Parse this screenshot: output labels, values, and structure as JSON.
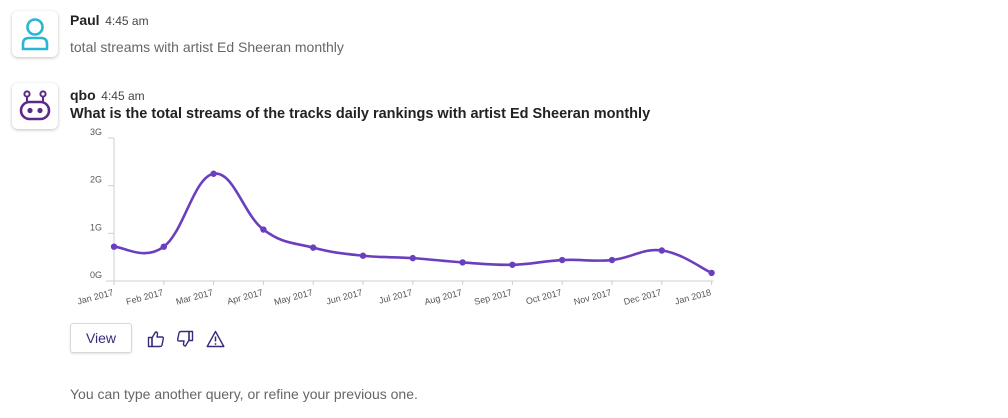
{
  "user_message": {
    "author": "Paul",
    "time": "4:45 am",
    "text": "total streams with artist Ed Sheeran monthly",
    "avatar_icon": "user-icon",
    "avatar_color": "#29b6d5"
  },
  "bot_message": {
    "author": "qbo",
    "time": "4:45 am",
    "question": "What is the total streams of the tracks daily rankings with artist Ed Sheeran monthly",
    "avatar_icon": "robot-icon",
    "avatar_color": "#5b2a86"
  },
  "chart_data": {
    "type": "line",
    "title": "",
    "xlabel": "",
    "ylabel": "",
    "categories": [
      "Jan 2017",
      "Feb 2017",
      "Mar 2017",
      "Apr 2017",
      "May 2017",
      "Jun 2017",
      "Jul 2017",
      "Aug 2017",
      "Sep 2017",
      "Oct 2017",
      "Nov 2017",
      "Dec 2017",
      "Jan 2018"
    ],
    "series": [
      {
        "name": "total streams",
        "values": [
          0.72,
          0.72,
          2.25,
          1.08,
          0.7,
          0.53,
          0.48,
          0.39,
          0.34,
          0.44,
          0.44,
          0.64,
          0.17
        ],
        "color": "#6a3fbf"
      }
    ],
    "y_ticks": [
      {
        "value": 0,
        "label": "0G"
      },
      {
        "value": 1,
        "label": "1G"
      },
      {
        "value": 2,
        "label": "2G"
      },
      {
        "value": 3,
        "label": "3G"
      }
    ],
    "ylim": [
      0,
      3
    ],
    "grid": false
  },
  "actions": {
    "view_label": "View",
    "thumbs_up_icon": "thumbs-up-icon",
    "thumbs_down_icon": "thumbs-down-icon",
    "warning_icon": "warning-icon",
    "icon_color": "#3b2a7a"
  },
  "footer": {
    "hint": "You can type another query, or refine your previous one."
  }
}
